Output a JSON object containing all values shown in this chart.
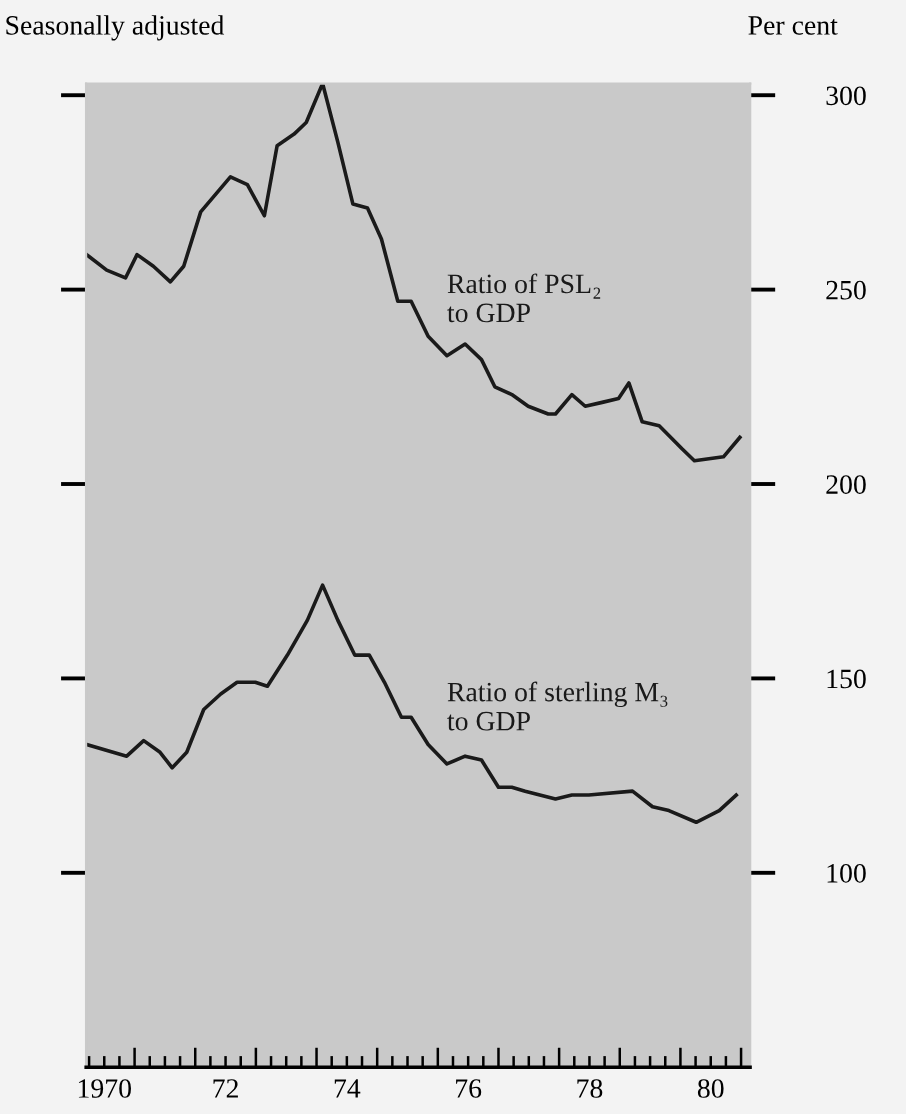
{
  "chart_data": {
    "type": "line",
    "subtitle": "Seasonally adjusted",
    "ylabel": "Per cent",
    "xlim": [
      1969.7,
      1980.65
    ],
    "ylim": [
      50,
      303
    ],
    "yticks": [
      100,
      150,
      200,
      250,
      300
    ],
    "xticks": [
      {
        "value": 1969.75,
        "label": null
      },
      {
        "value": 1970,
        "label": "1970"
      },
      {
        "value": 1970.25,
        "label": null
      },
      {
        "value": 1970.5,
        "label": null
      },
      {
        "value": 1970.75,
        "label": null
      },
      {
        "value": 1971,
        "label": null
      },
      {
        "value": 1971.25,
        "label": null
      },
      {
        "value": 1971.5,
        "label": null
      },
      {
        "value": 1971.75,
        "label": null
      },
      {
        "value": 1972,
        "label": "72"
      },
      {
        "value": 1972.25,
        "label": null
      },
      {
        "value": 1972.5,
        "label": null
      },
      {
        "value": 1972.75,
        "label": null
      },
      {
        "value": 1973,
        "label": null
      },
      {
        "value": 1973.25,
        "label": null
      },
      {
        "value": 1973.5,
        "label": null
      },
      {
        "value": 1973.75,
        "label": null
      },
      {
        "value": 1974,
        "label": "74"
      },
      {
        "value": 1974.25,
        "label": null
      },
      {
        "value": 1974.5,
        "label": null
      },
      {
        "value": 1974.75,
        "label": null
      },
      {
        "value": 1975,
        "label": null
      },
      {
        "value": 1975.25,
        "label": null
      },
      {
        "value": 1975.5,
        "label": null
      },
      {
        "value": 1975.75,
        "label": null
      },
      {
        "value": 1976,
        "label": "76"
      },
      {
        "value": 1976.25,
        "label": null
      },
      {
        "value": 1976.5,
        "label": null
      },
      {
        "value": 1976.75,
        "label": null
      },
      {
        "value": 1977,
        "label": null
      },
      {
        "value": 1977.25,
        "label": null
      },
      {
        "value": 1977.5,
        "label": null
      },
      {
        "value": 1977.75,
        "label": null
      },
      {
        "value": 1978,
        "label": "78"
      },
      {
        "value": 1978.25,
        "label": null
      },
      {
        "value": 1978.5,
        "label": null
      },
      {
        "value": 1978.75,
        "label": null
      },
      {
        "value": 1979,
        "label": null
      },
      {
        "value": 1979.25,
        "label": null
      },
      {
        "value": 1979.5,
        "label": null
      },
      {
        "value": 1979.75,
        "label": null
      },
      {
        "value": 1980,
        "label": "80"
      },
      {
        "value": 1980.25,
        "label": null
      },
      {
        "value": 1980.5,
        "label": null
      }
    ],
    "grid": false,
    "legend": false,
    "line_style": "solid",
    "series": [
      {
        "name": "Ratio of PSL₂\nto GDP",
        "color": "#1a1a1a",
        "x": [
          1969.71,
          1970.04,
          1970.35,
          1970.54,
          1970.81,
          1971.09,
          1971.31,
          1971.59,
          1972.08,
          1972.36,
          1972.64,
          1972.85,
          1973.13,
          1973.33,
          1973.6,
          1973.85,
          1974.1,
          1974.34,
          1974.57,
          1974.84,
          1975.06,
          1975.34,
          1975.65,
          1975.95,
          1976.22,
          1976.44,
          1976.72,
          1976.99,
          1977.32,
          1977.44,
          1977.71,
          1977.93,
          1978.21,
          1978.48,
          1978.65,
          1978.87,
          1979.15,
          1979.53,
          1979.73,
          1980.21,
          1980.48
        ],
        "values": [
          259,
          255,
          253,
          259,
          256,
          252,
          256,
          270,
          279,
          277,
          269,
          287,
          290,
          293,
          303,
          288,
          272,
          271,
          263,
          247,
          247,
          238,
          233,
          236,
          232,
          225,
          223,
          220,
          218,
          218,
          223,
          220,
          221,
          222,
          226,
          216,
          215,
          209,
          206,
          207,
          212
        ]
      },
      {
        "name": "Ratio of sterling M₃\nto GDP",
        "color": "#1a1a1a",
        "x": [
          1969.71,
          1970.37,
          1970.65,
          1970.92,
          1971.12,
          1971.36,
          1971.64,
          1971.92,
          1972.19,
          1972.49,
          1972.69,
          1973.02,
          1973.35,
          1973.6,
          1973.85,
          1974.13,
          1974.37,
          1974.62,
          1974.9,
          1975.06,
          1975.34,
          1975.65,
          1975.95,
          1976.22,
          1976.5,
          1976.72,
          1976.94,
          1977.44,
          1977.71,
          1977.99,
          1978.71,
          1979.04,
          1979.31,
          1979.76,
          1980.14,
          1980.42
        ],
        "values": [
          133,
          130,
          134,
          131,
          127,
          131,
          142,
          146,
          149,
          149,
          148,
          156,
          165,
          174,
          165,
          156,
          156,
          149,
          140,
          140,
          133,
          128,
          130,
          129,
          122,
          122,
          121,
          119,
          120,
          120,
          121,
          117,
          116,
          113,
          116,
          120
        ]
      }
    ]
  }
}
